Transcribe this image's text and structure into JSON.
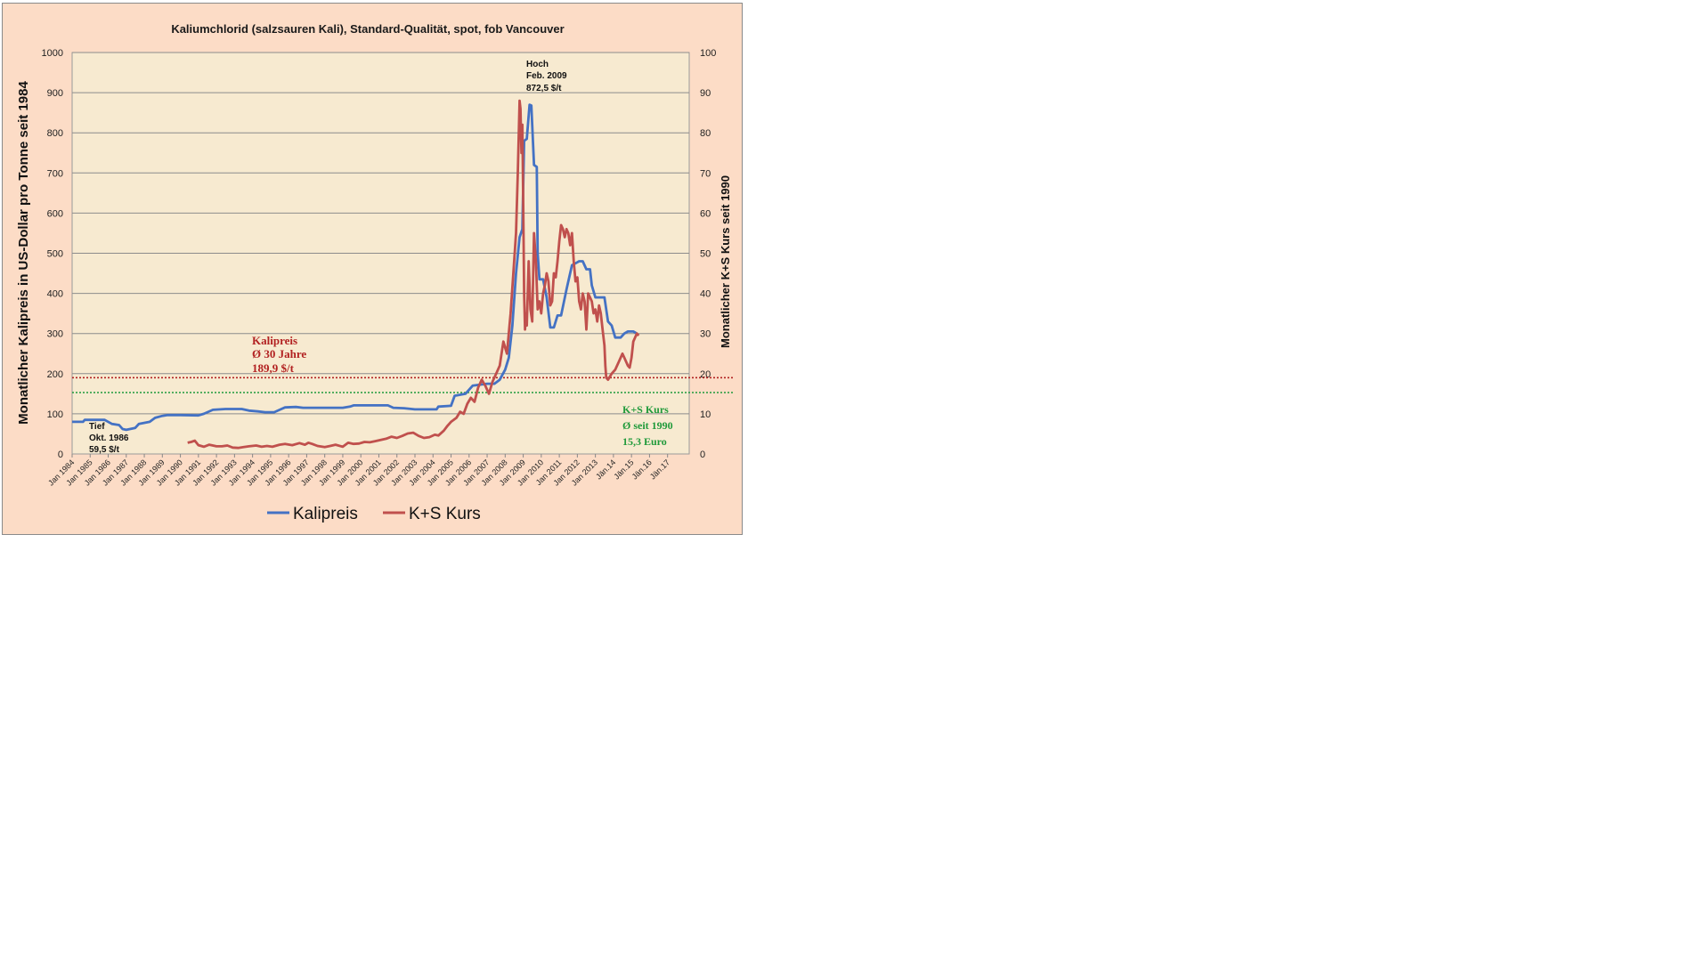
{
  "chart_data": {
    "type": "line",
    "title": "Kaliumchlorid (salzsauren Kali), Standard-Qualität, spot, fob Vancouver",
    "ylabel": "Monatlicher Kalipreis in US-Dollar  pro Tonne seit 1984",
    "y2label": "Monatlicher K+S Kurs seit 1990",
    "ylim": [
      0,
      1000
    ],
    "y2lim": [
      0,
      100
    ],
    "yticks": [
      "0",
      "100",
      "200",
      "300",
      "400",
      "500",
      "600",
      "700",
      "800",
      "900",
      "1000"
    ],
    "y2ticks": [
      "0",
      "10",
      "20",
      "30",
      "40",
      "50",
      "60",
      "70",
      "80",
      "90",
      "100"
    ],
    "xlim": [
      1984.0,
      2018.2
    ],
    "xticks": [
      "Jan 1984",
      "Jan 1985",
      "Jan 1986",
      "Jan 1987",
      "Jan 1988",
      "Jan 1989",
      "Jan 1990",
      "Jan 1991",
      "Jan 1992",
      "Jan 1993",
      "Jan 1994",
      "Jan 1995",
      "Jan 1996",
      "Jan 1997",
      "Jan 1998",
      "Jan 1999",
      "Jan 2000",
      "Jan 2001",
      "Jan 2002",
      "Jan 2003",
      "Jan 2004",
      "Jan 2005",
      "Jan 2006",
      "Jan 2007",
      "Jan 2008",
      "Jan 2009",
      "Jan 2010",
      "Jan 2011",
      "Jan 2012",
      "Jan 2013",
      "Jän.14",
      "Jän.15",
      "Jän.16",
      "Jän.17"
    ],
    "grid": true,
    "legend": "bottom",
    "series": [
      {
        "name": "Kalipreis",
        "axis": "left",
        "color": "#4472c4",
        "points": [
          [
            1984.0,
            80
          ],
          [
            1984.6,
            80
          ],
          [
            1984.7,
            85
          ],
          [
            1985.8,
            85
          ],
          [
            1986.2,
            75
          ],
          [
            1986.6,
            72
          ],
          [
            1986.8,
            62
          ],
          [
            1987.0,
            60
          ],
          [
            1987.5,
            65
          ],
          [
            1987.7,
            75
          ],
          [
            1988.3,
            80
          ],
          [
            1988.6,
            90
          ],
          [
            1989.0,
            95
          ],
          [
            1989.3,
            97
          ],
          [
            1990.0,
            97
          ],
          [
            1991.0,
            96
          ],
          [
            1991.3,
            100
          ],
          [
            1991.8,
            110
          ],
          [
            1992.5,
            112
          ],
          [
            1993.4,
            112
          ],
          [
            1993.8,
            108
          ],
          [
            1994.3,
            106
          ],
          [
            1994.7,
            104
          ],
          [
            1995.2,
            104
          ],
          [
            1995.5,
            110
          ],
          [
            1995.8,
            116
          ],
          [
            1996.4,
            117
          ],
          [
            1996.8,
            115
          ],
          [
            1999.0,
            115
          ],
          [
            1999.4,
            118
          ],
          [
            1999.6,
            121
          ],
          [
            2001.5,
            121
          ],
          [
            2001.8,
            115
          ],
          [
            2002.4,
            114
          ],
          [
            2003.0,
            111
          ],
          [
            2004.2,
            111
          ],
          [
            2004.3,
            118
          ],
          [
            2005.0,
            120
          ],
          [
            2005.2,
            145
          ],
          [
            2005.8,
            150
          ],
          [
            2006.0,
            160
          ],
          [
            2006.2,
            170
          ],
          [
            2007.0,
            175
          ],
          [
            2007.4,
            175
          ],
          [
            2007.7,
            185
          ],
          [
            2008.0,
            210
          ],
          [
            2008.2,
            240
          ],
          [
            2008.4,
            320
          ],
          [
            2008.6,
            450
          ],
          [
            2008.8,
            540
          ],
          [
            2008.95,
            560
          ],
          [
            2009.05,
            780
          ],
          [
            2009.2,
            785
          ],
          [
            2009.35,
            870
          ],
          [
            2009.45,
            868
          ],
          [
            2009.6,
            720
          ],
          [
            2009.75,
            715
          ],
          [
            2009.8,
            500
          ],
          [
            2009.9,
            435
          ],
          [
            2010.1,
            435
          ],
          [
            2010.3,
            390
          ],
          [
            2010.5,
            315
          ],
          [
            2010.7,
            315
          ],
          [
            2010.9,
            345
          ],
          [
            2011.1,
            345
          ],
          [
            2011.4,
            410
          ],
          [
            2011.7,
            470
          ],
          [
            2011.9,
            475
          ],
          [
            2012.1,
            480
          ],
          [
            2012.3,
            480
          ],
          [
            2012.5,
            460
          ],
          [
            2012.7,
            460
          ],
          [
            2012.8,
            420
          ],
          [
            2013.0,
            390
          ],
          [
            2013.2,
            390
          ],
          [
            2013.5,
            390
          ],
          [
            2013.7,
            330
          ],
          [
            2013.9,
            320
          ],
          [
            2014.1,
            290
          ],
          [
            2014.4,
            290
          ],
          [
            2014.6,
            300
          ],
          [
            2014.8,
            305
          ],
          [
            2015.1,
            305
          ],
          [
            2015.3,
            300
          ]
        ]
      },
      {
        "name": "K+S Kurs",
        "axis": "right",
        "color": "#c0504d",
        "points": [
          [
            1990.4,
            2.8
          ],
          [
            1990.6,
            3.0
          ],
          [
            1990.8,
            3.3
          ],
          [
            1991.0,
            2.2
          ],
          [
            1991.3,
            1.8
          ],
          [
            1991.6,
            2.3
          ],
          [
            1991.8,
            2.1
          ],
          [
            1992.0,
            1.9
          ],
          [
            1992.3,
            1.9
          ],
          [
            1992.6,
            2.1
          ],
          [
            1992.9,
            1.6
          ],
          [
            1993.2,
            1.5
          ],
          [
            1993.5,
            1.7
          ],
          [
            1993.8,
            1.9
          ],
          [
            1994.2,
            2.1
          ],
          [
            1994.5,
            1.8
          ],
          [
            1994.8,
            2.0
          ],
          [
            1995.1,
            1.8
          ],
          [
            1995.5,
            2.3
          ],
          [
            1995.8,
            2.5
          ],
          [
            1996.2,
            2.2
          ],
          [
            1996.6,
            2.7
          ],
          [
            1996.9,
            2.3
          ],
          [
            1997.1,
            2.8
          ],
          [
            1997.3,
            2.5
          ],
          [
            1997.6,
            2.0
          ],
          [
            1998.0,
            1.7
          ],
          [
            1998.3,
            2.0
          ],
          [
            1998.6,
            2.3
          ],
          [
            1999.0,
            1.8
          ],
          [
            1999.3,
            2.8
          ],
          [
            1999.6,
            2.5
          ],
          [
            1999.9,
            2.6
          ],
          [
            2000.2,
            3.0
          ],
          [
            2000.5,
            2.9
          ],
          [
            2000.8,
            3.2
          ],
          [
            2001.1,
            3.5
          ],
          [
            2001.4,
            3.8
          ],
          [
            2001.7,
            4.3
          ],
          [
            2002.0,
            4.0
          ],
          [
            2002.3,
            4.5
          ],
          [
            2002.6,
            5.1
          ],
          [
            2002.9,
            5.3
          ],
          [
            2003.2,
            4.5
          ],
          [
            2003.5,
            4.0
          ],
          [
            2003.8,
            4.2
          ],
          [
            2004.1,
            4.8
          ],
          [
            2004.3,
            4.6
          ],
          [
            2004.6,
            5.8
          ],
          [
            2004.8,
            7.0
          ],
          [
            2005.0,
            8.0
          ],
          [
            2005.3,
            9.0
          ],
          [
            2005.5,
            10.5
          ],
          [
            2005.7,
            10.0
          ],
          [
            2005.9,
            12.5
          ],
          [
            2006.1,
            14.0
          ],
          [
            2006.3,
            13.0
          ],
          [
            2006.5,
            16.5
          ],
          [
            2006.7,
            18.5
          ],
          [
            2006.9,
            17.0
          ],
          [
            2007.1,
            15.0
          ],
          [
            2007.3,
            18.0
          ],
          [
            2007.5,
            20.0
          ],
          [
            2007.7,
            22.0
          ],
          [
            2007.9,
            28.0
          ],
          [
            2008.1,
            25.0
          ],
          [
            2008.3,
            35.0
          ],
          [
            2008.5,
            48.0
          ],
          [
            2008.6,
            55.0
          ],
          [
            2008.7,
            70.0
          ],
          [
            2008.8,
            88.0
          ],
          [
            2008.85,
            86.0
          ],
          [
            2008.9,
            75.0
          ],
          [
            2008.95,
            82.0
          ],
          [
            2009.0,
            62.0
          ],
          [
            2009.05,
            40.0
          ],
          [
            2009.1,
            31.0
          ],
          [
            2009.15,
            35.0
          ],
          [
            2009.2,
            32.0
          ],
          [
            2009.3,
            48.0
          ],
          [
            2009.4,
            36.0
          ],
          [
            2009.5,
            33.0
          ],
          [
            2009.6,
            55.0
          ],
          [
            2009.7,
            48.0
          ],
          [
            2009.8,
            36.0
          ],
          [
            2009.9,
            38.0
          ],
          [
            2010.0,
            35.0
          ],
          [
            2010.1,
            40.0
          ],
          [
            2010.2,
            42.0
          ],
          [
            2010.3,
            45.0
          ],
          [
            2010.4,
            43.0
          ],
          [
            2010.5,
            37.0
          ],
          [
            2010.6,
            38.0
          ],
          [
            2010.7,
            45.0
          ],
          [
            2010.8,
            44.0
          ],
          [
            2010.9,
            48.0
          ],
          [
            2011.0,
            53.0
          ],
          [
            2011.1,
            57.0
          ],
          [
            2011.2,
            56.0
          ],
          [
            2011.3,
            54.0
          ],
          [
            2011.4,
            56.0
          ],
          [
            2011.5,
            55.0
          ],
          [
            2011.6,
            52.0
          ],
          [
            2011.7,
            55.0
          ],
          [
            2011.8,
            48.0
          ],
          [
            2011.9,
            43.0
          ],
          [
            2012.0,
            44.0
          ],
          [
            2012.1,
            38.0
          ],
          [
            2012.2,
            36.0
          ],
          [
            2012.3,
            40.0
          ],
          [
            2012.4,
            38.0
          ],
          [
            2012.5,
            31.0
          ],
          [
            2012.6,
            40.0
          ],
          [
            2012.7,
            39.0
          ],
          [
            2012.8,
            38.0
          ],
          [
            2012.9,
            35.0
          ],
          [
            2013.0,
            36.0
          ],
          [
            2013.1,
            33.0
          ],
          [
            2013.2,
            37.0
          ],
          [
            2013.3,
            35.0
          ],
          [
            2013.4,
            31.0
          ],
          [
            2013.5,
            27.0
          ],
          [
            2013.55,
            22.0
          ],
          [
            2013.6,
            19.0
          ],
          [
            2013.7,
            18.5
          ],
          [
            2013.9,
            20.0
          ],
          [
            2014.1,
            21.0
          ],
          [
            2014.3,
            23.0
          ],
          [
            2014.5,
            25.0
          ],
          [
            2014.6,
            24.0
          ],
          [
            2014.8,
            22.0
          ],
          [
            2014.9,
            21.5
          ],
          [
            2015.0,
            24.0
          ],
          [
            2015.1,
            28.0
          ],
          [
            2015.2,
            29.0
          ],
          [
            2015.3,
            30.0
          ],
          [
            2015.4,
            29.5
          ]
        ]
      }
    ],
    "reference_lines": [
      {
        "axis": "left",
        "value": 189.9,
        "color": "#b22222",
        "style": "dotted"
      },
      {
        "axis": "right",
        "value": 15.3,
        "color": "#1f9a3a",
        "style": "dotted"
      }
    ],
    "annotations": {
      "tief": [
        "Tief",
        "Okt. 1986",
        "59,5 $/t"
      ],
      "hoch": [
        "Hoch",
        "Feb. 2009",
        "872,5 $/t"
      ],
      "kalipreis_avg": [
        "Kalipreis",
        "Ø 30 Jahre",
        "189,9  $/t"
      ],
      "ks_avg": [
        "K+S Kurs",
        "Ø seit 1990",
        "15,3 Euro"
      ]
    }
  }
}
